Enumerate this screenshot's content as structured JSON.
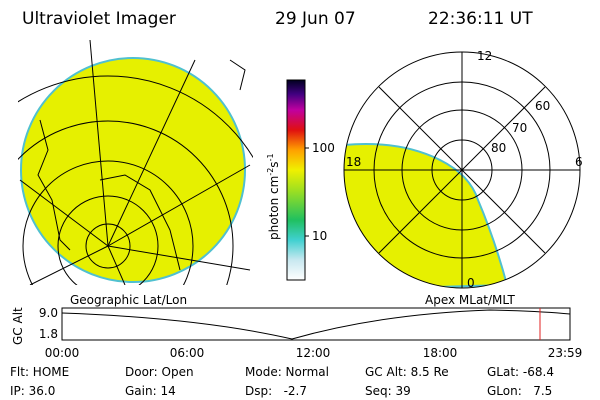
{
  "header": {
    "instrument": "Ultraviolet Imager",
    "date": "29 Jun 07",
    "time": "22:36:11 UT"
  },
  "colorbar": {
    "label_parts": [
      "photon cm",
      "-2",
      "s",
      "-1"
    ],
    "ticks": [
      "100",
      "10"
    ]
  },
  "geo_panel": {
    "label": "Geographic Lat/Lon"
  },
  "mag_panel": {
    "label": "Apex MLat/MLT",
    "mlt_labels": [
      "12",
      "18",
      "6",
      "0"
    ],
    "mlat_labels": [
      "60",
      "70",
      "80"
    ]
  },
  "altitude_plot": {
    "ylabel": "GC Alt",
    "yticks": [
      "9.0",
      "1.8"
    ],
    "xticks": [
      "00:00",
      "06:00",
      "12:00",
      "18:00",
      "23:59"
    ]
  },
  "status": {
    "rows": [
      [
        "Flt: HOME",
        "Door: Open",
        "Mode: Normal",
        "GC Alt: 8.5 Re",
        "GLat: -68.4"
      ],
      [
        "IP: 36.0",
        "Gain: 14",
        "Dsp:   -2.7",
        "Seq: 39",
        "GLon:   7.5"
      ]
    ]
  }
}
